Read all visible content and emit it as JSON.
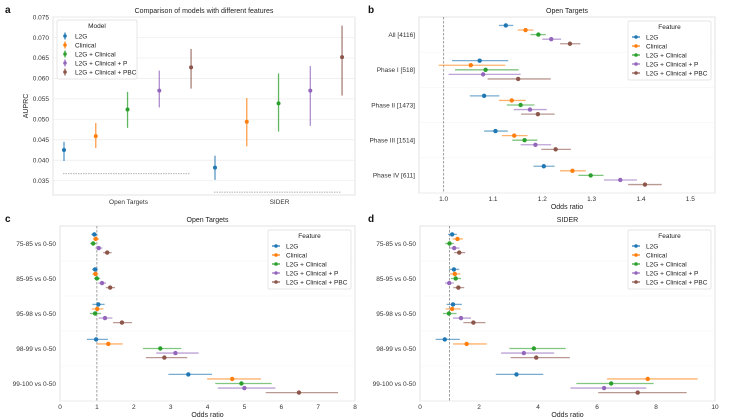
{
  "colors": {
    "L2G": "#1f77b4",
    "Clinical": "#ff7f0e",
    "L2G + Clinical": "#2ca02c",
    "L2G + Clinical + P": "#9467bd",
    "L2G + Clinical + PBC": "#8c564b"
  },
  "chart_data": [
    {
      "panel": "a",
      "type": "scatter",
      "title": "Comparison of models with different features",
      "xlabel": "",
      "ylabel": "AUPRC",
      "ylim": [
        0.0315,
        0.075
      ],
      "yticks": [
        "0.035",
        "0.040",
        "0.045",
        "0.050",
        "0.055",
        "0.060",
        "0.065",
        "0.070",
        "0.075"
      ],
      "categories": [
        "Open Targets",
        "SIDER"
      ],
      "legend": {
        "title": "Model",
        "placement": "top-left"
      },
      "grid": true,
      "series": [
        {
          "name": "L2G",
          "values": [
            0.0425,
            0.0382
          ],
          "lower": [
            0.0398,
            0.0352
          ],
          "upper": [
            0.0445,
            0.0411
          ]
        },
        {
          "name": "Clinical",
          "values": [
            0.0459,
            0.0494
          ],
          "lower": [
            0.043,
            0.0434
          ],
          "upper": [
            0.0491,
            0.0552
          ]
        },
        {
          "name": "L2G + Clinical",
          "values": [
            0.0524,
            0.0539
          ],
          "lower": [
            0.0479,
            0.047
          ],
          "upper": [
            0.0567,
            0.0612
          ]
        },
        {
          "name": "L2G + Clinical + P",
          "values": [
            0.057,
            0.057
          ],
          "lower": [
            0.0529,
            0.0484
          ],
          "upper": [
            0.0619,
            0.063
          ]
        },
        {
          "name": "L2G + Clinical + PBC",
          "values": [
            0.0627,
            0.0652
          ],
          "lower": [
            0.0575,
            0.0558
          ],
          "upper": [
            0.0672,
            0.0729
          ]
        }
      ],
      "baselines": [
        {
          "category": "Open Targets",
          "value": 0.0367
        },
        {
          "category": "SIDER",
          "value": 0.0322
        }
      ]
    },
    {
      "panel": "b",
      "type": "scatter",
      "title": "Open Targets",
      "xlabel": "Odds ratio",
      "ylabel": "",
      "xlim": [
        0.95,
        1.55
      ],
      "xticks": [
        "1.0",
        "1.1",
        "1.2",
        "1.3",
        "1.4",
        "1.5"
      ],
      "reference_line": 1.0,
      "categories": [
        "All [4116]",
        "Phase I [518]",
        "Phase II [1473]",
        "Phase III [1514]",
        "Phase IV [611]"
      ],
      "legend": {
        "title": "Feature",
        "placement": "top-right"
      },
      "series": [
        {
          "name": "L2G",
          "values": [
            1.126,
            1.073,
            1.082,
            1.105,
            1.203
          ],
          "lower": [
            1.112,
            1.017,
            1.053,
            1.082,
            1.182
          ],
          "upper": [
            1.141,
            1.131,
            1.113,
            1.13,
            1.225
          ]
        },
        {
          "name": "Clinical",
          "values": [
            1.166,
            1.055,
            1.138,
            1.143,
            1.261
          ],
          "lower": [
            1.15,
            0.99,
            1.112,
            1.118,
            1.236
          ],
          "upper": [
            1.182,
            1.125,
            1.166,
            1.17,
            1.288
          ]
        },
        {
          "name": "L2G + Clinical",
          "values": [
            1.192,
            1.085,
            1.156,
            1.164,
            1.298
          ],
          "lower": [
            1.176,
            1.023,
            1.128,
            1.139,
            1.273
          ],
          "upper": [
            1.207,
            1.152,
            1.184,
            1.19,
            1.324
          ]
        },
        {
          "name": "L2G + Clinical + P",
          "values": [
            1.218,
            1.08,
            1.175,
            1.186,
            1.358
          ],
          "lower": [
            1.2,
            1.01,
            1.142,
            1.156,
            1.325
          ],
          "upper": [
            1.238,
            1.156,
            1.209,
            1.218,
            1.392
          ]
        },
        {
          "name": "L2G + Clinical + PBC",
          "values": [
            1.256,
            1.151,
            1.191,
            1.227,
            1.408
          ],
          "lower": [
            1.236,
            1.089,
            1.157,
            1.198,
            1.374
          ],
          "upper": [
            1.277,
            1.217,
            1.225,
            1.258,
            1.442
          ]
        }
      ]
    },
    {
      "panel": "c",
      "type": "scatter",
      "title": "Open Targets",
      "xlabel": "Odds ratio",
      "ylabel": "",
      "xlim": [
        0,
        8
      ],
      "xticks": [
        "0",
        "1",
        "2",
        "3",
        "4",
        "5",
        "6",
        "7",
        "8"
      ],
      "reference_line": 1.0,
      "categories": [
        "75-85 vs 0-50",
        "85-95 vs 0-50",
        "95-98 vs 0-50",
        "98-99 vs 0-50",
        "99-100 vs 0-50"
      ],
      "legend": {
        "title": "Feature",
        "placement": "top-right"
      },
      "series": [
        {
          "name": "L2G",
          "values": [
            0.93,
            0.95,
            1.04,
            0.98,
            3.48
          ],
          "lower": [
            0.85,
            0.87,
            0.88,
            0.73,
            2.94
          ],
          "upper": [
            1.01,
            1.03,
            1.21,
            1.3,
            4.12
          ]
        },
        {
          "name": "Clinical",
          "values": [
            0.97,
            0.96,
            1.01,
            1.31,
            4.67
          ],
          "lower": [
            0.89,
            0.88,
            0.86,
            1.01,
            3.99
          ],
          "upper": [
            1.06,
            1.04,
            1.18,
            1.7,
            5.45
          ]
        },
        {
          "name": "L2G + Clinical",
          "values": [
            0.9,
            1.0,
            0.95,
            2.72,
            4.92
          ],
          "lower": [
            0.82,
            0.92,
            0.81,
            2.25,
            4.21
          ],
          "upper": [
            0.98,
            1.09,
            1.11,
            3.29,
            5.74
          ]
        },
        {
          "name": "L2G + Clinical + P",
          "values": [
            1.05,
            1.14,
            1.22,
            3.13,
            5.0
          ],
          "lower": [
            0.96,
            1.04,
            1.05,
            2.61,
            4.28
          ],
          "upper": [
            1.15,
            1.25,
            1.42,
            3.76,
            5.84
          ]
        },
        {
          "name": "L2G + Clinical + PBC",
          "values": [
            1.28,
            1.36,
            1.68,
            2.83,
            6.48
          ],
          "lower": [
            1.17,
            1.24,
            1.44,
            2.33,
            5.58
          ],
          "upper": [
            1.4,
            1.49,
            1.95,
            3.45,
            7.54
          ]
        }
      ]
    },
    {
      "panel": "d",
      "type": "scatter",
      "title": "SIDER",
      "xlabel": "Odds ratio",
      "ylabel": "",
      "xlim": [
        0,
        10
      ],
      "xticks": [
        "0",
        "2",
        "4",
        "6",
        "8",
        "10"
      ],
      "reference_line": 1.0,
      "categories": [
        "75-85 vs 0-50",
        "85-95 vs 0-50",
        "95-98 vs 0-50",
        "98-99 vs 0-50",
        "99-100 vs 0-50"
      ],
      "legend": {
        "title": "Feature",
        "placement": "top-right"
      },
      "series": [
        {
          "name": "L2G",
          "values": [
            1.09,
            1.15,
            1.12,
            0.84,
            3.27
          ],
          "lower": [
            0.95,
            0.99,
            0.9,
            0.53,
            2.57
          ],
          "upper": [
            1.25,
            1.33,
            1.42,
            1.35,
            4.18
          ]
        },
        {
          "name": "Clinical",
          "values": [
            1.27,
            1.18,
            1.09,
            1.58,
            7.72
          ],
          "lower": [
            1.1,
            1.02,
            0.87,
            1.12,
            6.34
          ],
          "upper": [
            1.46,
            1.37,
            1.38,
            2.26,
            9.41
          ]
        },
        {
          "name": "L2G + Clinical",
          "values": [
            1.0,
            1.21,
            0.98,
            3.86,
            6.48
          ],
          "lower": [
            0.86,
            1.05,
            0.78,
            3.03,
            5.3
          ],
          "upper": [
            1.15,
            1.39,
            1.24,
            4.94,
            7.92
          ]
        },
        {
          "name": "L2G + Clinical + P",
          "values": [
            1.16,
            0.99,
            1.39,
            3.52,
            6.24
          ],
          "lower": [
            1.01,
            0.85,
            1.12,
            2.75,
            5.1
          ],
          "upper": [
            1.34,
            1.15,
            1.73,
            4.55,
            7.67
          ]
        },
        {
          "name": "L2G + Clinical + PBC",
          "values": [
            1.33,
            1.3,
            1.81,
            3.94,
            7.38
          ],
          "lower": [
            1.16,
            1.13,
            1.47,
            3.07,
            6.04
          ],
          "upper": [
            1.53,
            1.5,
            2.22,
            5.08,
            9.04
          ]
        }
      ]
    }
  ]
}
